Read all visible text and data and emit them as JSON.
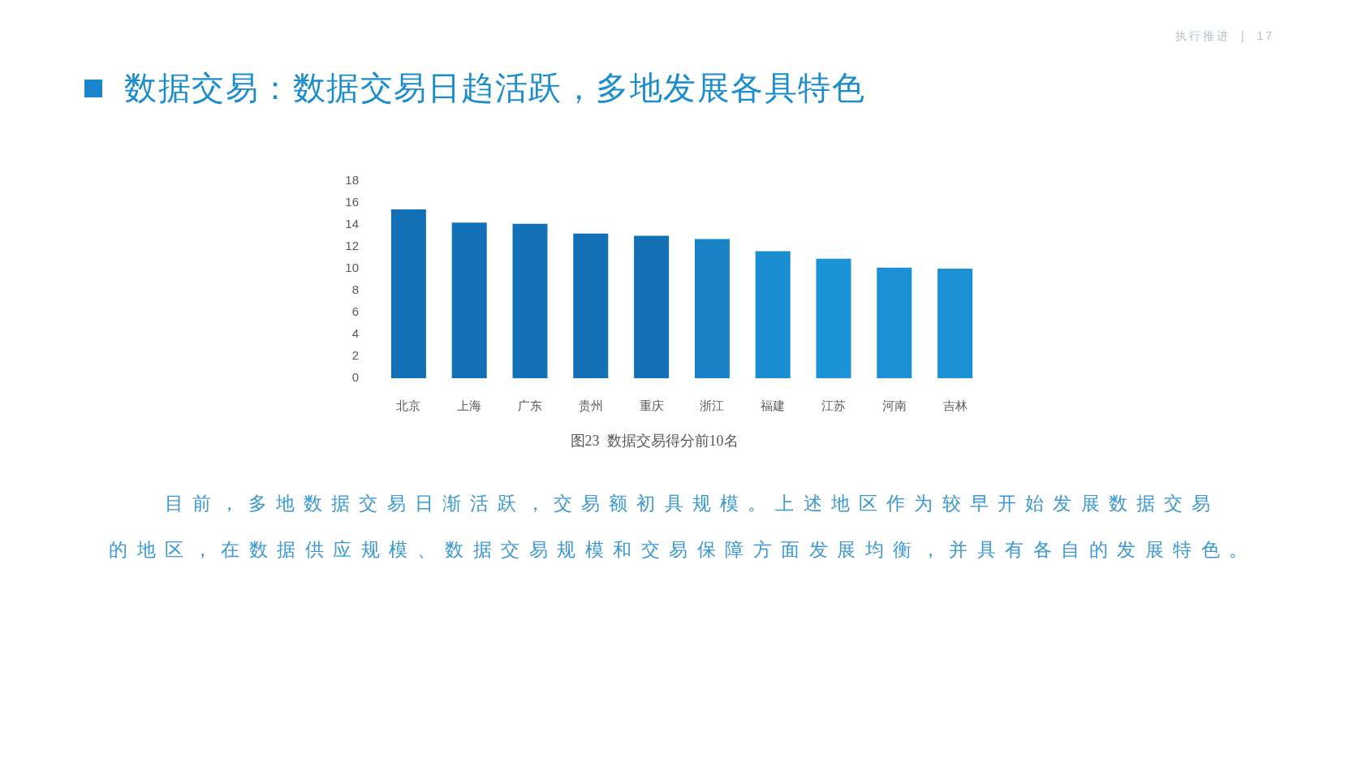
{
  "chart_data": {
    "type": "bar",
    "title": "数据交易：数据交易日趋活跃，多地发展各具特色",
    "categories": [
      "北京",
      "上海",
      "广东",
      "贵州",
      "重庆",
      "浙江",
      "福建",
      "江苏",
      "河南",
      "吉林"
    ],
    "values": [
      15.4,
      14.2,
      14.1,
      13.2,
      13.0,
      12.7,
      11.6,
      10.9,
      10.1,
      10.0
    ],
    "colors": [
      "#1470b6",
      "#1470b6",
      "#1470b6",
      "#1470b6",
      "#1470b6",
      "#1783c6",
      "#1a8cd0",
      "#1b93d6",
      "#1b90d4",
      "#1b90d4"
    ],
    "ylim": [
      0,
      18
    ],
    "yticks": [
      0,
      2,
      4,
      6,
      8,
      10,
      12,
      14,
      16,
      18
    ],
    "annotations": [
      "执行推进 | 17",
      "图23  数据交易得分前10名",
      "目前，多地数据交易日渐活跃，交易额初具规模。上述地区作为较早开始发展数据交易",
      "的地区，在数据供应规模、数据交易规模和交易保障方面发展均衡，并具有各自的发展特色。"
    ]
  }
}
